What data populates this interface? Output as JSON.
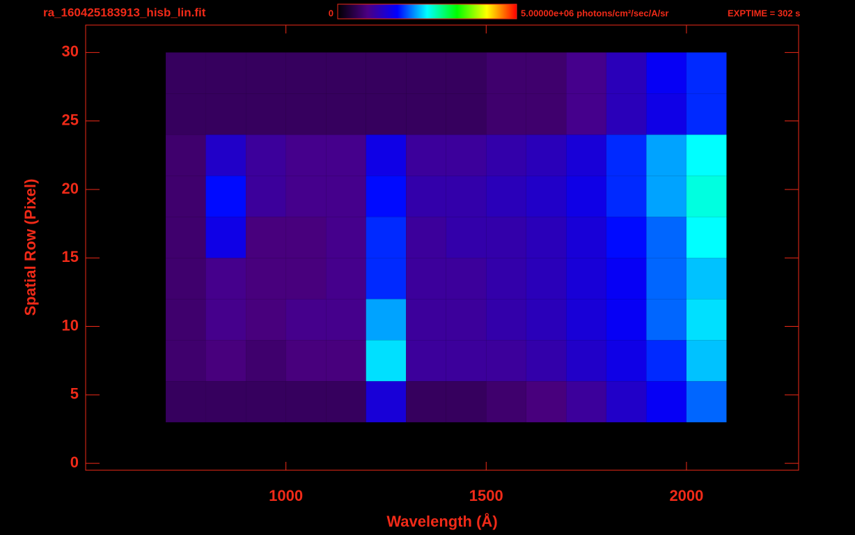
{
  "chart_data": {
    "type": "heatmap",
    "title": "ra_160425183913_hisb_lin.fit",
    "annotation": "EXPTIME = 302 s",
    "x_label": "Wavelength (Å)",
    "y_label": "Spatial Row (Pixel)",
    "xlim": [
      500,
      2280
    ],
    "ylim": [
      -0.5,
      32
    ],
    "xticks": [
      1000,
      1500,
      2000
    ],
    "yticks": [
      0,
      5,
      10,
      15,
      20,
      25,
      30
    ],
    "xbins": [
      700,
      800,
      900,
      1000,
      1100,
      1200,
      1300,
      1400,
      1500,
      1600,
      1700,
      1800,
      1900,
      2000,
      2100
    ],
    "ybins": [
      3,
      6,
      9,
      12,
      15,
      18,
      21,
      24,
      27,
      30
    ],
    "values": [
      [
        600000,
        600000,
        600000,
        600000,
        600000,
        1400000,
        600000,
        600000,
        700000,
        800000,
        1000000,
        1300000,
        1600000,
        2000000
      ],
      [
        700000,
        800000,
        700000,
        800000,
        800000,
        2400000,
        1000000,
        1000000,
        1000000,
        1100000,
        1300000,
        1500000,
        1800000,
        2300000
      ],
      [
        700000,
        900000,
        800000,
        900000,
        900000,
        2200000,
        1000000,
        1000000,
        1100000,
        1200000,
        1400000,
        1600000,
        2000000,
        2400000
      ],
      [
        700000,
        900000,
        800000,
        800000,
        900000,
        1800000,
        1000000,
        1000000,
        1100000,
        1200000,
        1400000,
        1600000,
        2000000,
        2300000
      ],
      [
        700000,
        1500000,
        800000,
        800000,
        900000,
        1800000,
        1000000,
        1100000,
        1100000,
        1200000,
        1400000,
        1700000,
        2000000,
        2500000
      ],
      [
        700000,
        1700000,
        1000000,
        900000,
        900000,
        1700000,
        1100000,
        1100000,
        1200000,
        1300000,
        1500000,
        1800000,
        2200000,
        2600000
      ],
      [
        700000,
        1300000,
        1000000,
        900000,
        900000,
        1500000,
        1000000,
        1000000,
        1100000,
        1200000,
        1400000,
        1800000,
        2200000,
        2500000
      ],
      [
        600000,
        600000,
        600000,
        600000,
        600000,
        600000,
        600000,
        600000,
        700000,
        700000,
        900000,
        1200000,
        1500000,
        1800000
      ],
      [
        600000,
        600000,
        600000,
        600000,
        600000,
        600000,
        600000,
        600000,
        700000,
        700000,
        900000,
        1200000,
        1600000,
        1800000
      ]
    ],
    "colormap": [
      "#000000",
      "#4b0082",
      "#0000ff",
      "#00ffff",
      "#00ff00",
      "#ffff00",
      "#ff0000"
    ],
    "colorbar": {
      "range": [
        0,
        5000000
      ],
      "ticks": [
        0,
        {
          "value": 5000000,
          "label": "5.00000e+06"
        }
      ],
      "unit": "photons/cm²/sec/A/sr"
    }
  }
}
